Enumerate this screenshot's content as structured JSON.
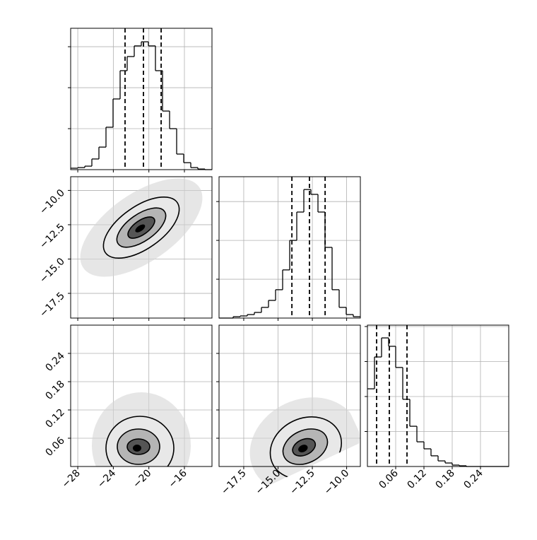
{
  "chart_data": [
    {
      "type": "histogram",
      "xlim": [
        -28.8,
        -12.9
      ],
      "xticks": [
        {
          "value": -28,
          "label": "−28"
        },
        {
          "value": -24,
          "label": "−24"
        },
        {
          "value": -20,
          "label": "−20"
        },
        {
          "value": -16,
          "label": "−16"
        }
      ],
      "bins": [
        -28.8,
        -28.005,
        -27.21,
        -26.415,
        -25.62,
        -24.825,
        -24.03,
        -23.235,
        -22.44,
        -21.645,
        -20.85,
        -20.055,
        -19.26,
        -18.465,
        -17.67,
        -16.875,
        -16.08,
        -15.285,
        -14.49,
        -13.695,
        -12.9
      ],
      "counts": [
        7,
        10,
        17,
        52,
        110,
        207,
        345,
        483,
        552,
        604,
        624,
        604,
        483,
        286,
        200,
        76,
        34,
        10,
        3,
        0
      ],
      "ylim": [
        0,
        690
      ],
      "yticks": [
        200,
        400,
        600
      ],
      "quantiles": [
        -22.68,
        -20.61,
        -18.62
      ],
      "color": "#000000",
      "grid": true
    },
    {
      "type": "histogram",
      "xlim": [
        -19.3,
        -9.0
      ],
      "xticks": [
        {
          "value": -17.5,
          "label": "−17.5"
        },
        {
          "value": -15.0,
          "label": "−15.0"
        },
        {
          "value": -12.5,
          "label": "−12.5"
        },
        {
          "value": -10.0,
          "label": "−10.0"
        }
      ],
      "bins": [
        -19.3,
        -18.785,
        -18.27,
        -17.755,
        -17.24,
        -16.725,
        -16.21,
        -15.695,
        -15.18,
        -14.665,
        -14.15,
        -13.635,
        -13.12,
        -12.605,
        -12.09,
        -11.575,
        -11.06,
        -10.545,
        -10.03,
        -9.515,
        -9.0
      ],
      "counts": [
        0,
        0,
        7,
        11,
        18,
        29,
        55,
        91,
        146,
        248,
        400,
        546,
        662,
        637,
        546,
        364,
        146,
        55,
        18,
        7
      ],
      "ylim": [
        0,
        728
      ],
      "yticks": [
        200,
        400,
        600
      ],
      "quantiles": [
        -13.99,
        -12.71,
        -11.57
      ],
      "color": "#000000",
      "grid": true
    },
    {
      "type": "histogram",
      "xlim": [
        0,
        0.3
      ],
      "xticks": [
        0.06,
        0.12,
        0.18,
        0.24
      ],
      "bins": [
        0,
        0.015,
        0.03,
        0.045,
        0.06,
        0.075,
        0.09,
        0.105,
        0.12,
        0.135,
        0.15,
        0.165,
        0.18,
        0.195,
        0.21,
        0.225,
        0.24,
        0.255,
        0.27,
        0.285,
        0.3
      ],
      "counts": [
        444,
        626,
        735,
        687,
        566,
        384,
        230,
        141,
        101,
        61,
        32,
        20,
        8,
        4,
        0,
        0,
        0,
        0,
        0,
        0
      ],
      "ylim": [
        0,
        808
      ],
      "yticks": [
        200,
        400,
        600,
        800
      ],
      "quantiles": [
        0.0195,
        0.0465,
        0.084
      ],
      "color": "#000000",
      "grid": true
    }
  ]
}
